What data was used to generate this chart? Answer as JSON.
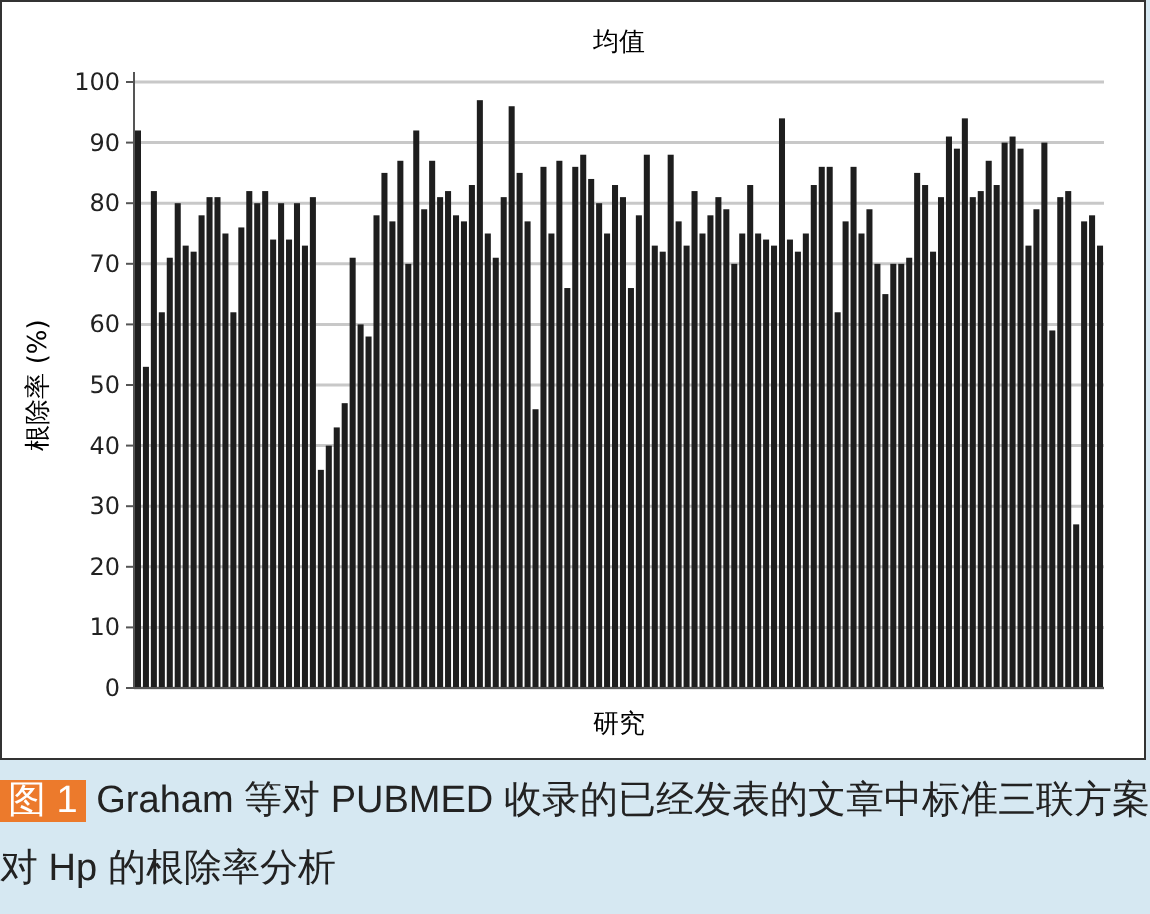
{
  "chart_data": {
    "type": "bar",
    "title": "均值",
    "xlabel": "研究",
    "ylabel": "根除率 (%)",
    "annotations": [
      "图 1",
      "Graham 等对 PUBMED 收录的已经发表的文章中标准三联方案对 Hp 的根除率分析"
    ],
    "categories": [
      null,
      null,
      null,
      null,
      null,
      null,
      null,
      null,
      null,
      null,
      null,
      null,
      null,
      null,
      null,
      null,
      null,
      null,
      null,
      null,
      null,
      null,
      null,
      null,
      null,
      null,
      null,
      null,
      null,
      null,
      null,
      null,
      null,
      null,
      null,
      null,
      null,
      null,
      null,
      null,
      null,
      null,
      null,
      null,
      null,
      null,
      null,
      null,
      null,
      null,
      null,
      null,
      null,
      null,
      null,
      null,
      null,
      null,
      null,
      null,
      null,
      null,
      null,
      null,
      null,
      null,
      null,
      null,
      null,
      null,
      null,
      null,
      null,
      null,
      null,
      null,
      null,
      null,
      null,
      null,
      null,
      null,
      null,
      null,
      null,
      null,
      null,
      null,
      null,
      null,
      null,
      null,
      null,
      null,
      null,
      null,
      null,
      null,
      null,
      null,
      null,
      null,
      null,
      null,
      null,
      null,
      null,
      null,
      null,
      null,
      null,
      null,
      null,
      null,
      null,
      null,
      null,
      null,
      null,
      null,
      null,
      null
    ],
    "values": [
      92,
      53,
      82,
      62,
      71,
      80,
      73,
      72,
      78,
      81,
      81,
      75,
      62,
      76,
      82,
      80,
      82,
      74,
      80,
      74,
      80,
      73,
      81,
      36,
      40,
      43,
      47,
      71,
      60,
      58,
      78,
      85,
      77,
      87,
      70,
      92,
      79,
      87,
      81,
      82,
      78,
      77,
      83,
      97,
      75,
      71,
      81,
      96,
      85,
      77,
      46,
      86,
      75,
      87,
      66,
      86,
      88,
      84,
      80,
      75,
      83,
      81,
      66,
      78,
      88,
      73,
      72,
      88,
      77,
      73,
      82,
      75,
      78,
      81,
      79,
      70,
      75,
      83,
      75,
      74,
      73,
      94,
      74,
      72,
      75,
      83,
      86,
      86,
      62,
      77,
      86,
      75,
      79,
      70,
      65,
      70,
      70,
      71,
      85,
      83,
      72,
      81,
      91,
      89,
      94,
      81,
      82,
      87,
      83,
      90,
      91,
      89,
      73,
      79,
      90,
      59,
      81,
      82,
      27,
      77,
      78,
      73
    ],
    "color": "#1e1e1e",
    "ylim": [
      0,
      100
    ],
    "yticks": [
      0,
      10,
      20,
      30,
      40,
      50,
      60,
      70,
      80,
      90,
      100
    ],
    "grid": "y"
  }
}
